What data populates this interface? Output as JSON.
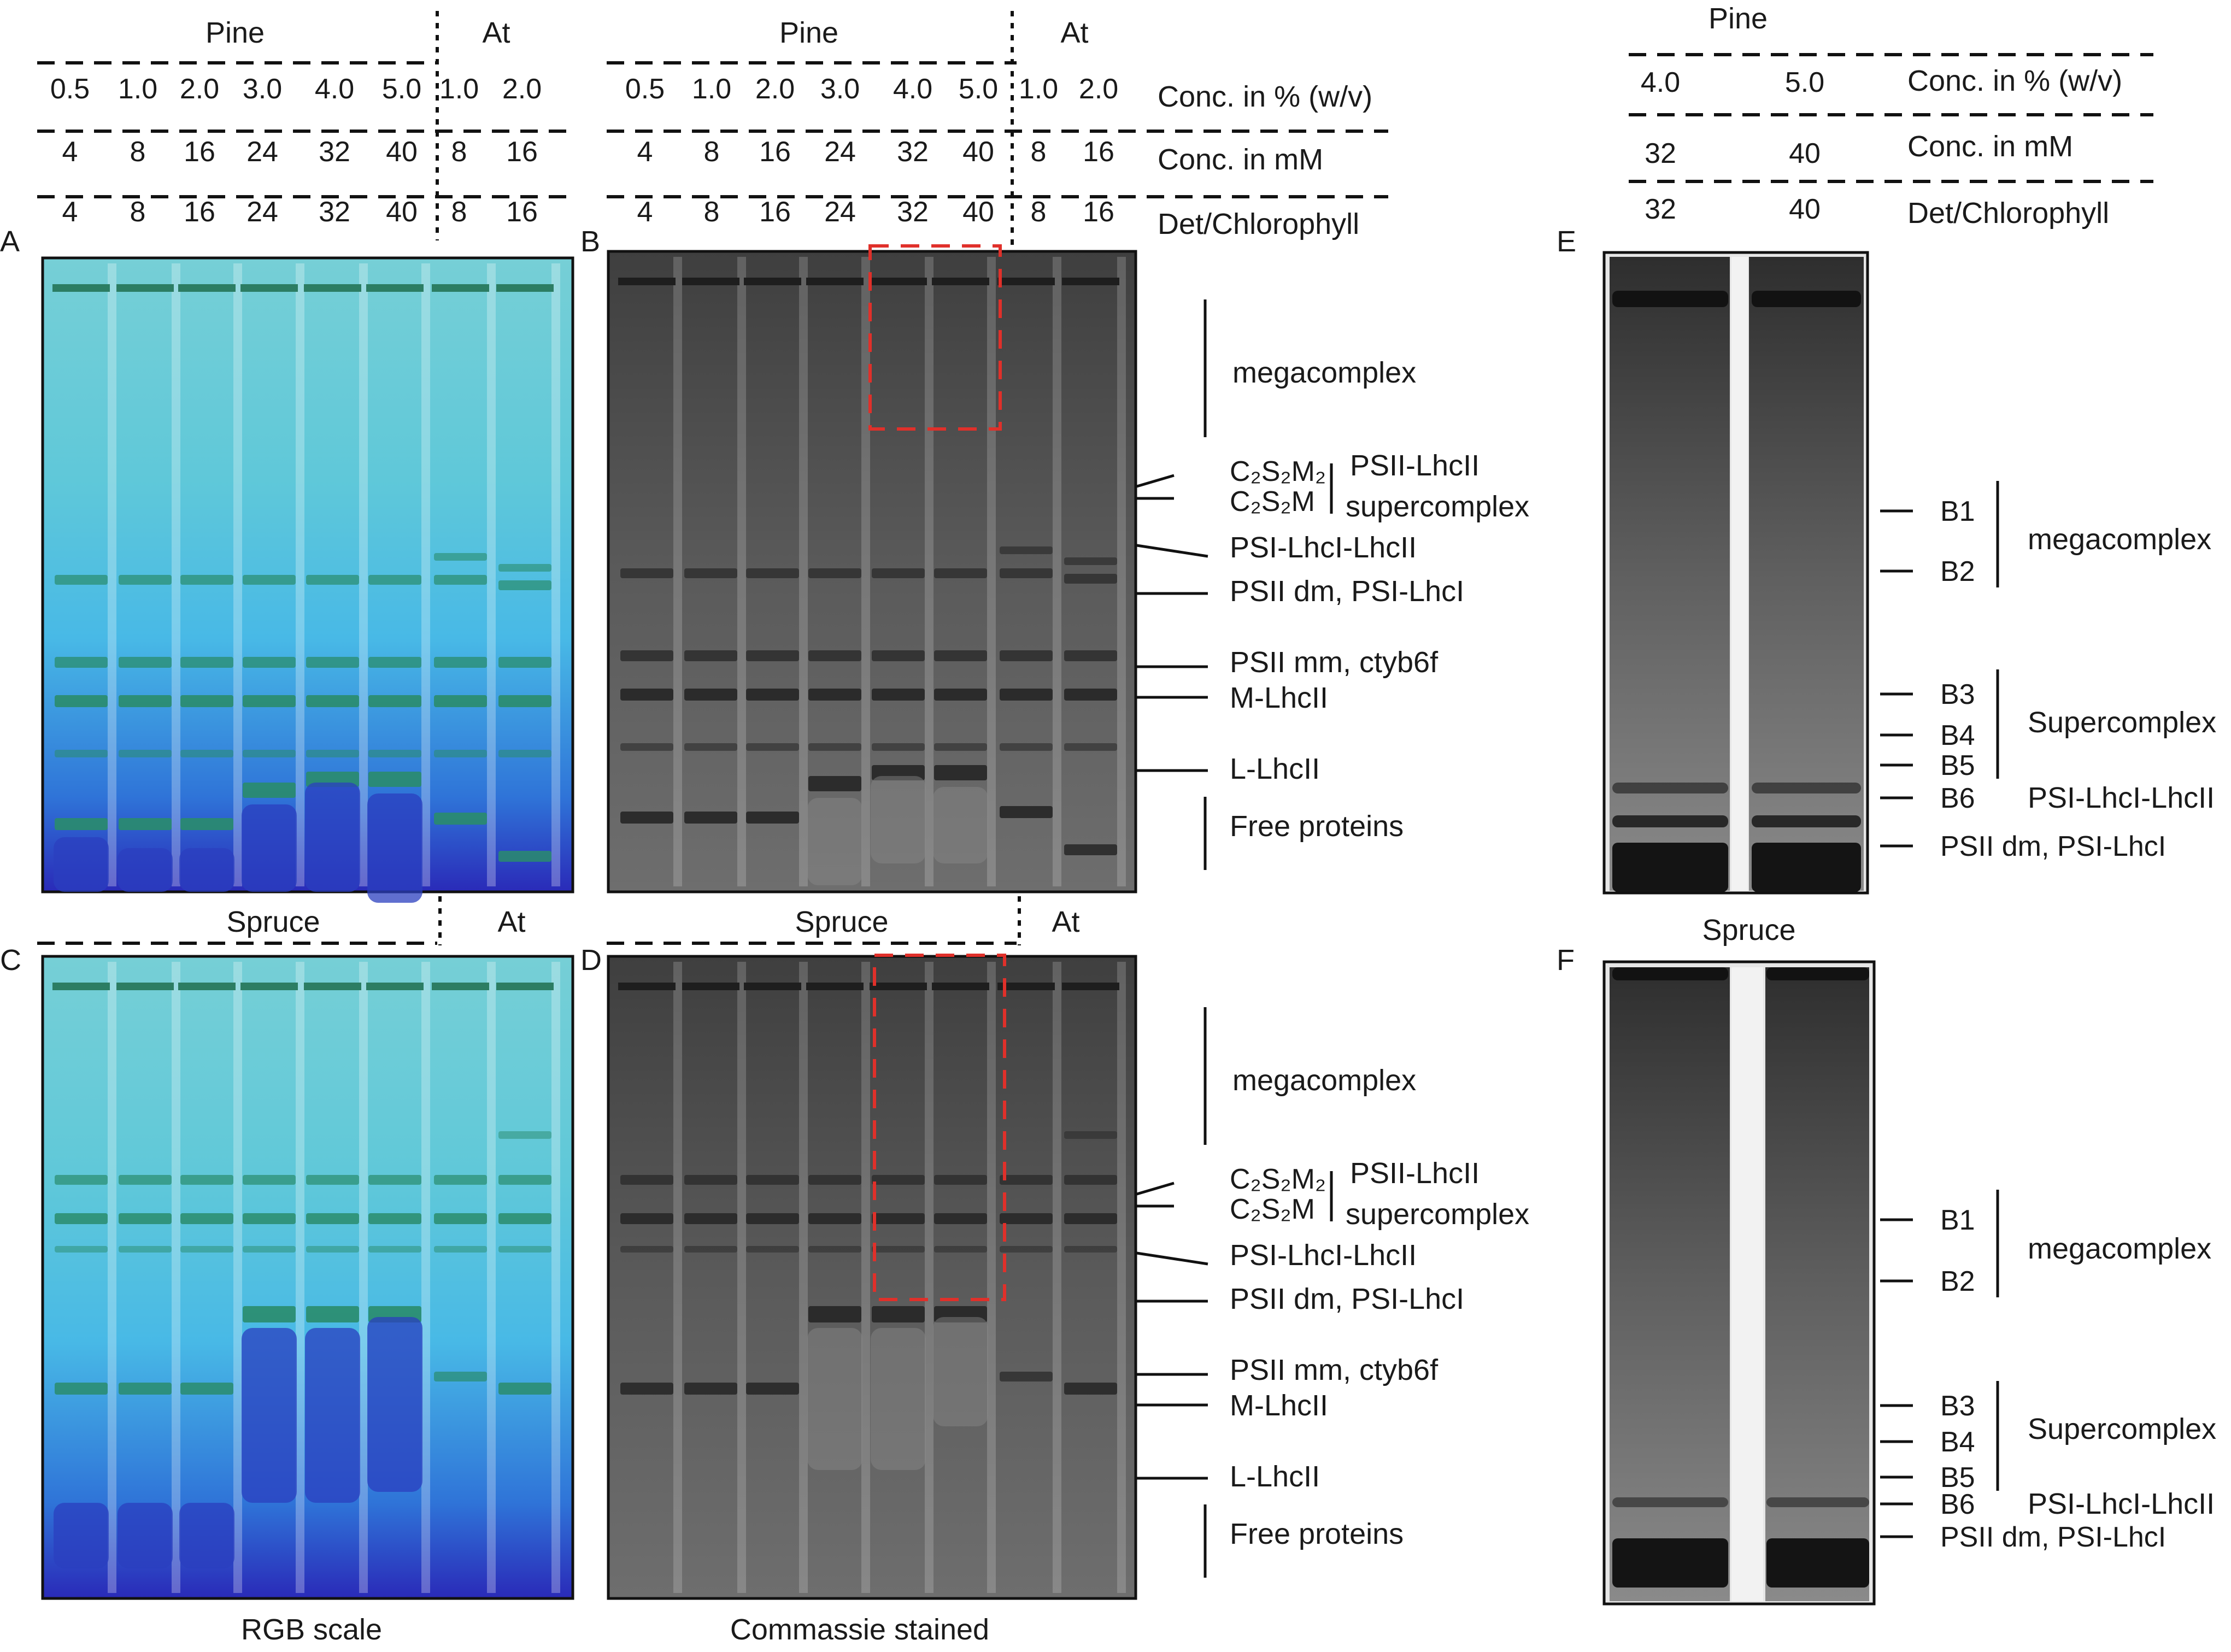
{
  "panels": {
    "a": "A",
    "b": "B",
    "c": "C",
    "d": "D",
    "e": "E",
    "f": "F"
  },
  "header_ab": {
    "pine": "Pine",
    "at": "At",
    "pct_values": [
      "0.5",
      "1.0",
      "2.0",
      "3.0",
      "4.0",
      "5.0",
      "1.0",
      "2.0"
    ],
    "mm_values": [
      "4",
      "8",
      "16",
      "24",
      "32",
      "40",
      "8",
      "16"
    ],
    "det_values": [
      "4",
      "8",
      "16",
      "24",
      "32",
      "40",
      "8",
      "16"
    ],
    "row_label_pct": "Conc. in % (w/v)",
    "row_label_mm": "Conc. in mM",
    "row_label_det": "Det/Chlorophyll"
  },
  "header_cd": {
    "spruce": "Spruce",
    "at": "At"
  },
  "header_e": {
    "pine": "Pine",
    "pct_values": [
      "4.0",
      "5.0"
    ],
    "mm_values": [
      "32",
      "40"
    ],
    "det_values": [
      "32",
      "40"
    ],
    "row_label_pct": "Conc. in % (w/v)",
    "row_label_mm": "Conc. in mM",
    "row_label_det": "Det/Chlorophyll"
  },
  "header_f": {
    "spruce": "Spruce"
  },
  "band_labels": {
    "megacomplex": "megacomplex",
    "c2s2m2": "C₂S₂M₂",
    "c2s2m": "C₂S₂M",
    "psii_lhcii": "PSII-LhcII",
    "supercomplex": "supercomplex",
    "psi_lhci_lhcii": "PSI-LhcI-LhcII",
    "psii_dm": "PSII dm, PSI-LhcI",
    "psii_mm": "PSII mm, ctyb6f",
    "m_lhcii": "M-LhcII",
    "l_lhcii": "L-LhcII",
    "free_proteins": "Free proteins"
  },
  "ef_labels": {
    "b1": "B1",
    "b2": "B2",
    "b3": "B3",
    "b4": "B4",
    "b5": "B5",
    "b6": "B6",
    "megacomplex": "megacomplex",
    "supercomplex": "Supercomplex",
    "psi_lhci_lhcii": "PSI-LhcI-LhcII",
    "psii_dm": "PSII dm,  PSI-LhcI"
  },
  "captions": {
    "rgb": "RGB scale",
    "coomassie": "Commassie stained"
  },
  "colors": {
    "gel_blue_top": "#62c4d2",
    "gel_blue_bottom": "#3b3fc2",
    "gel_band_green": "#2d8f6e",
    "gel_gray": "#555555",
    "highlight_box": "#e0302a"
  }
}
